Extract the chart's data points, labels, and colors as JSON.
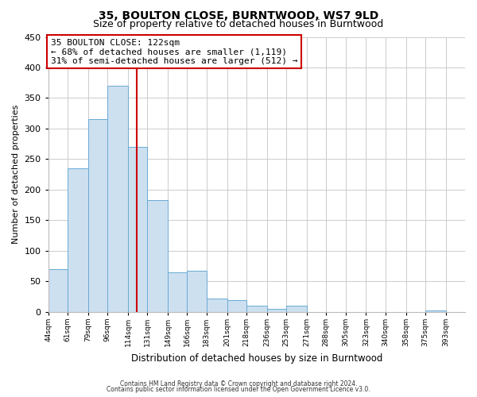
{
  "title": "35, BOULTON CLOSE, BURNTWOOD, WS7 9LD",
  "subtitle": "Size of property relative to detached houses in Burntwood",
  "xlabel": "Distribution of detached houses by size in Burntwood",
  "ylabel": "Number of detached properties",
  "bar_edges": [
    44,
    61,
    79,
    96,
    114,
    131,
    149,
    166,
    183,
    201,
    218,
    236,
    253,
    271,
    288,
    305,
    323,
    340,
    358,
    375,
    393
  ],
  "bar_heights": [
    70,
    235,
    315,
    370,
    270,
    183,
    65,
    68,
    22,
    19,
    10,
    5,
    10,
    0,
    0,
    0,
    0,
    0,
    0,
    3
  ],
  "bar_color": "#cce0f0",
  "bar_edge_color": "#6aaad4",
  "vline_x": 122,
  "vline_color": "#cc0000",
  "ylim": [
    0,
    450
  ],
  "xlim_left": 44,
  "xlim_right": 410,
  "annotation_line1": "35 BOULTON CLOSE: 122sqm",
  "annotation_line2": "← 68% of detached houses are smaller (1,119)",
  "annotation_line3": "31% of semi-detached houses are larger (512) →",
  "annotation_box_color": "#ffffff",
  "annotation_box_edge": "#cc0000",
  "footnote1": "Contains HM Land Registry data © Crown copyright and database right 2024.",
  "footnote2": "Contains public sector information licensed under the Open Government Licence v3.0.",
  "tick_labels": [
    "44sqm",
    "61sqm",
    "79sqm",
    "96sqm",
    "114sqm",
    "131sqm",
    "149sqm",
    "166sqm",
    "183sqm",
    "201sqm",
    "218sqm",
    "236sqm",
    "253sqm",
    "271sqm",
    "288sqm",
    "305sqm",
    "323sqm",
    "340sqm",
    "358sqm",
    "375sqm",
    "393sqm"
  ],
  "background_color": "#ffffff",
  "grid_color": "#cccccc",
  "title_fontsize": 10,
  "subtitle_fontsize": 9,
  "xlabel_fontsize": 8.5,
  "ylabel_fontsize": 8,
  "tick_fontsize": 6.5,
  "annotation_fontsize": 8,
  "footnote_fontsize": 5.5
}
